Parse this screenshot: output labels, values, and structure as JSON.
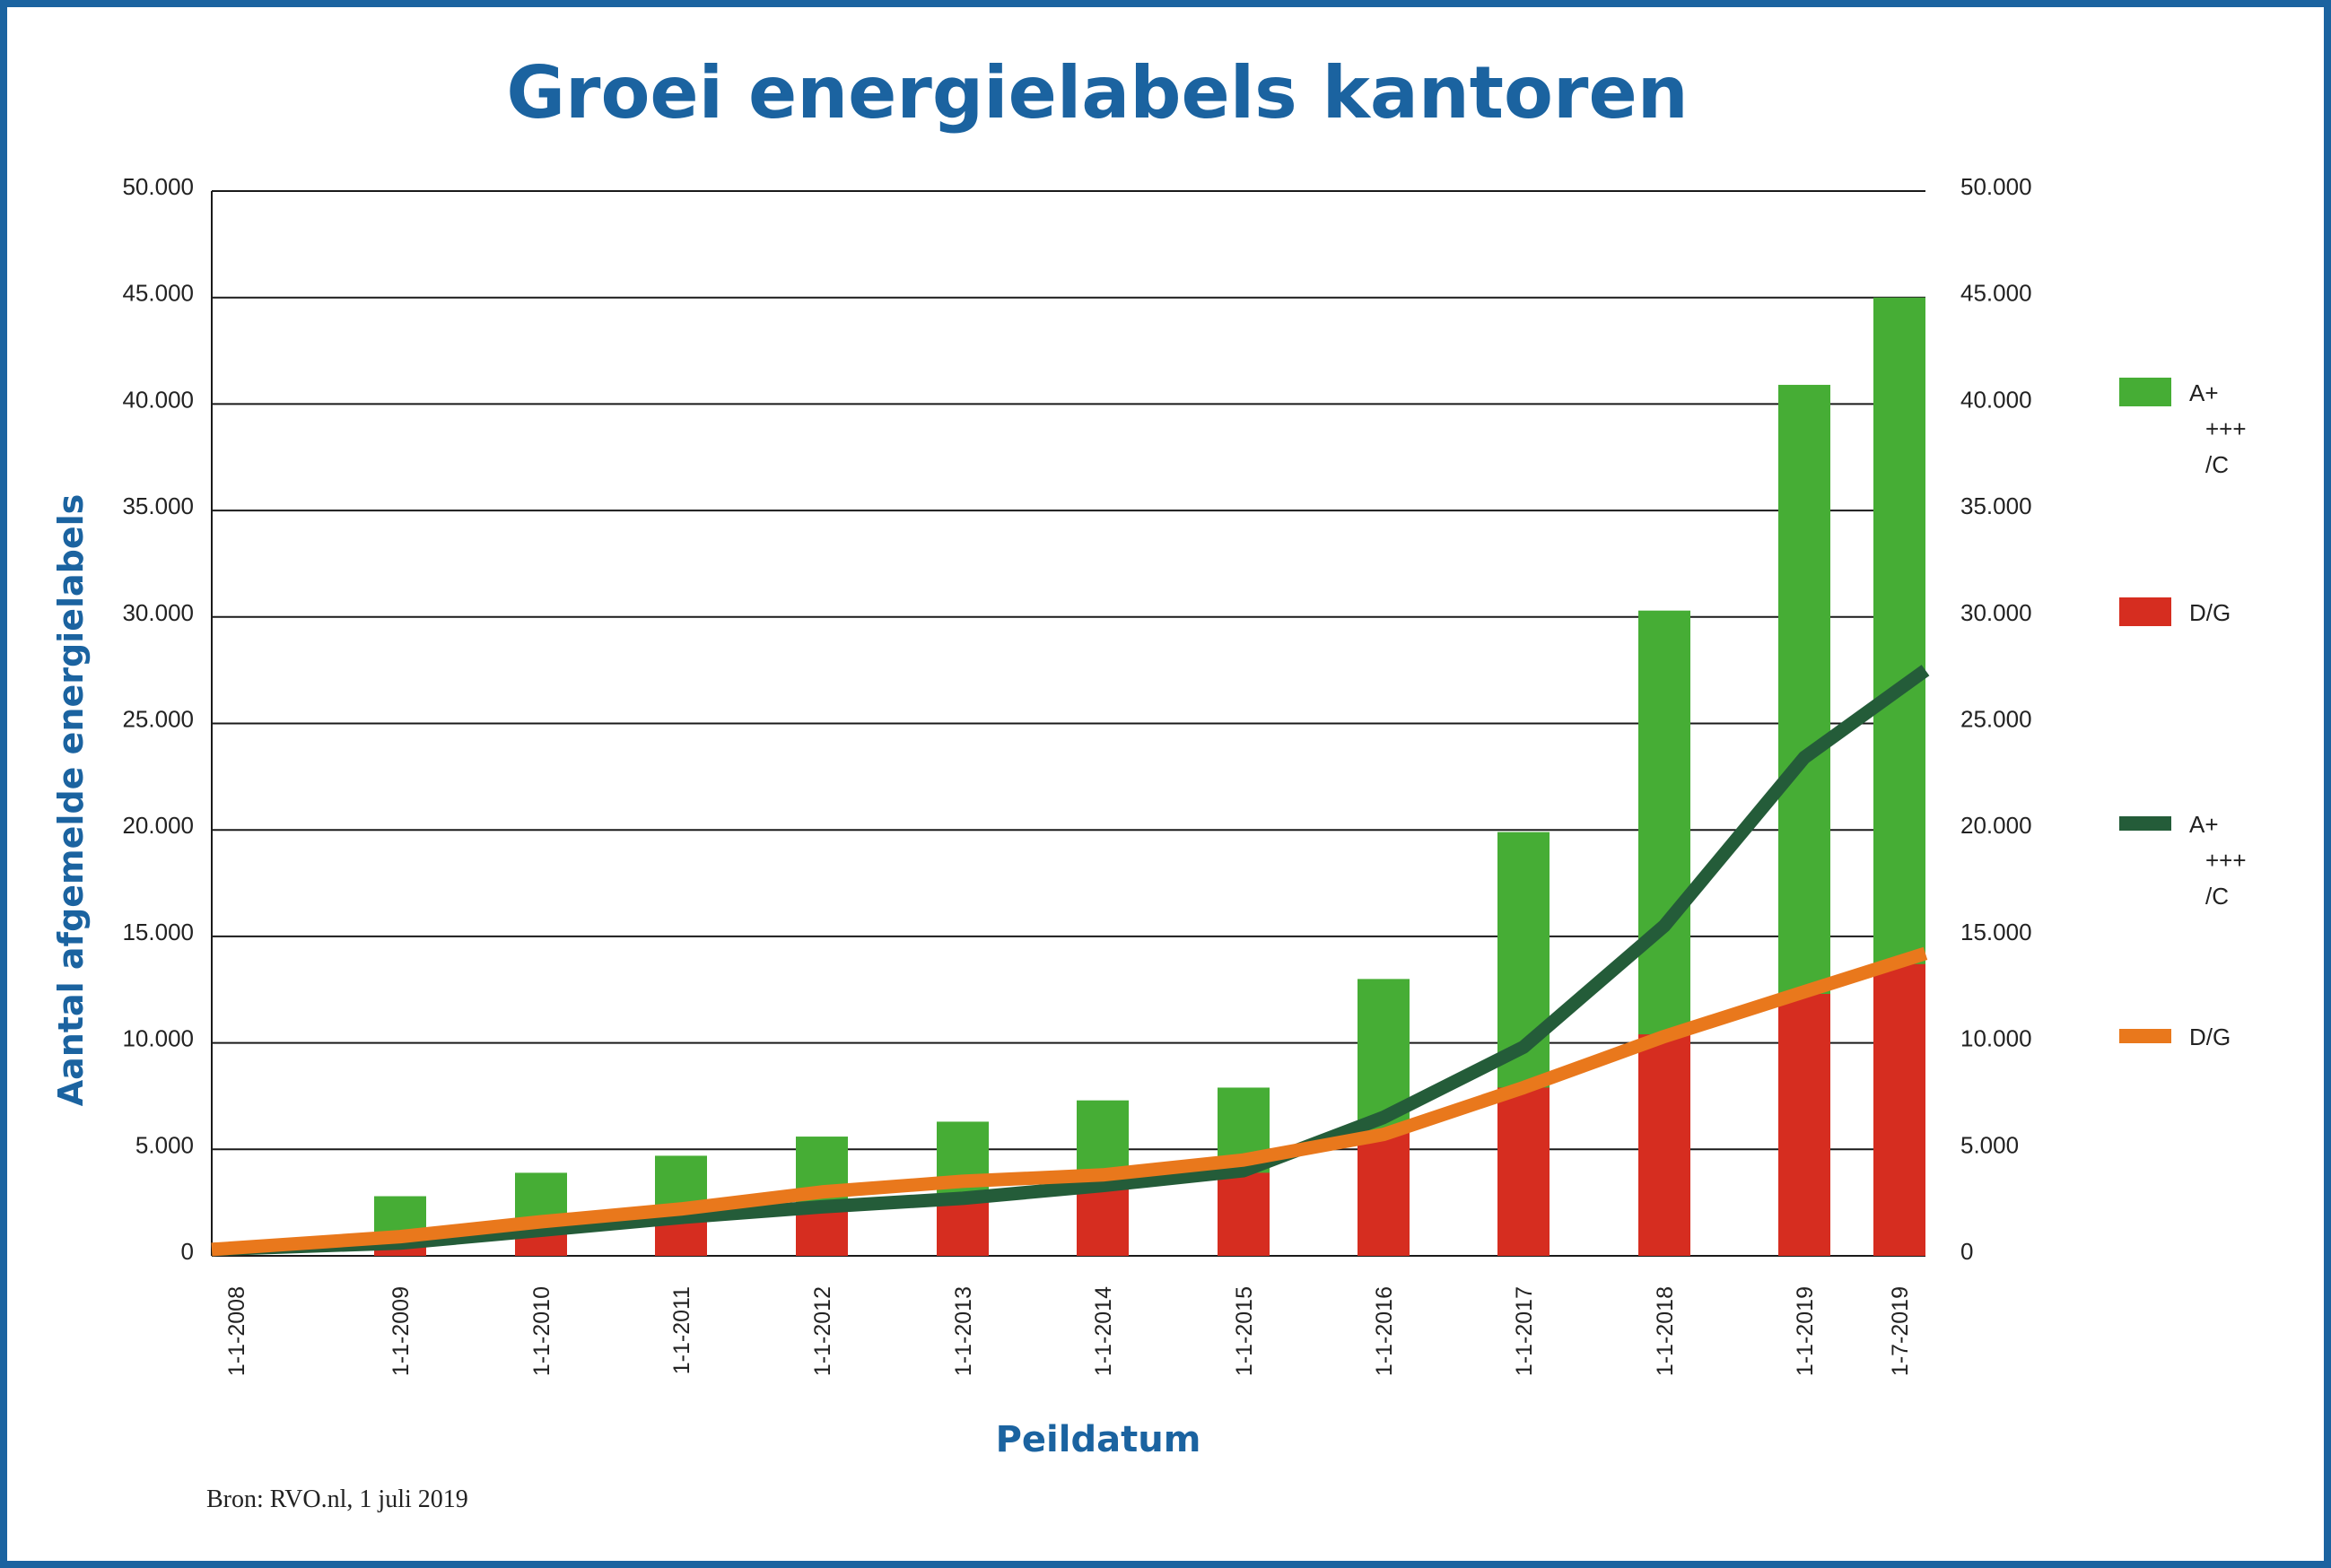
{
  "chart_data": {
    "type": "bar",
    "title": "Groei energielabels kantoren",
    "xlabel": "Peildatum",
    "ylabel": "Aantal afgemelde energielabels",
    "ylim": [
      0,
      50000
    ],
    "y_ticks": [
      "0",
      "5.000",
      "10.000",
      "15.000",
      "20.000",
      "25.000",
      "30.000",
      "35.000",
      "40.000",
      "45.000",
      "50.000"
    ],
    "y_tick_values": [
      0,
      5000,
      10000,
      15000,
      20000,
      25000,
      30000,
      35000,
      40000,
      45000,
      50000
    ],
    "grid": true,
    "categories": [
      "1-1-2008",
      "1-1-2009",
      "1-1-2010",
      "1-1-2011",
      "1-1-2012",
      "1-1-2013",
      "1-1-2014",
      "1-1-2015",
      "1-1-2016",
      "1-1-2017",
      "1-1-2018",
      "1-1-2019",
      "1-7-2019"
    ],
    "bar_series": [
      {
        "name": "A+++/C",
        "color": "#46ad35",
        "values": [
          0,
          2800,
          3900,
          4700,
          5600,
          6300,
          7300,
          7900,
          13000,
          19900,
          30300,
          40900,
          45000
        ]
      },
      {
        "name": "D/G",
        "color": "#d62d20",
        "values": [
          0,
          450,
          1000,
          1600,
          2100,
          2600,
          3200,
          3900,
          5800,
          7900,
          10400,
          12300,
          13700
        ]
      }
    ],
    "line_series": [
      {
        "name": "A+++/C",
        "color": "#245c39",
        "values": [
          300,
          600,
          1200,
          1800,
          2300,
          2700,
          3300,
          4000,
          6500,
          9800,
          15500,
          23400,
          27500
        ]
      },
      {
        "name": "D/G",
        "color": "#e9781c",
        "values": [
          300,
          900,
          1600,
          2200,
          3000,
          3500,
          3800,
          4500,
          5700,
          7900,
          10300,
          12400,
          14200
        ]
      }
    ],
    "legend": {
      "placement": "right",
      "entries": [
        {
          "kind": "bar",
          "color": "#46ad35",
          "lines": [
            "A+",
            "+++",
            "/C"
          ]
        },
        {
          "kind": "bar",
          "color": "#d62d20",
          "lines": [
            "D/G"
          ]
        },
        {
          "kind": "line",
          "color": "#245c39",
          "lines": [
            "A+",
            "+++",
            "/C"
          ]
        },
        {
          "kind": "line",
          "color": "#e9781c",
          "lines": [
            "D/G"
          ]
        }
      ]
    }
  },
  "source": "Bron: RVO.nl, 1 juli 2019"
}
